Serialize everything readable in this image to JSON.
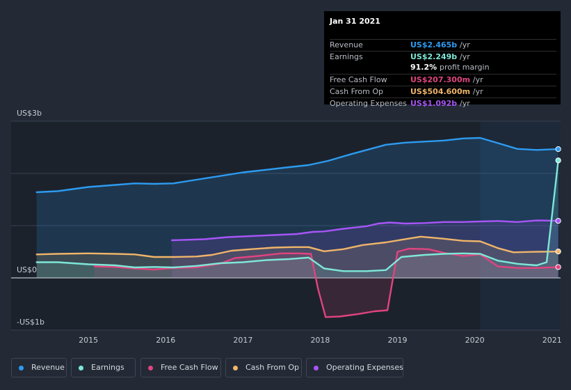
{
  "tooltip": {
    "date": "Jan 31 2021",
    "rows": [
      {
        "label": "Revenue",
        "value": "US$2.465b",
        "unit": "/yr",
        "color": "#2d9bf0"
      },
      {
        "label": "Earnings",
        "value": "US$2.249b",
        "unit": "/yr",
        "color": "#7ee8d8"
      },
      {
        "label": "",
        "value": "91.2%",
        "unit": "profit margin",
        "color": "#ffffff"
      },
      {
        "label": "Free Cash Flow",
        "value": "US$207.300m",
        "unit": "/yr",
        "color": "#e0447f"
      },
      {
        "label": "Cash From Op",
        "value": "US$504.600m",
        "unit": "/yr",
        "color": "#f0b56a"
      },
      {
        "label": "Operating Expenses",
        "value": "US$1.092b",
        "unit": "/yr",
        "color": "#a855f7"
      }
    ]
  },
  "legend": [
    {
      "label": "Revenue",
      "color": "#2d9bf0"
    },
    {
      "label": "Earnings",
      "color": "#7ee8d8"
    },
    {
      "label": "Free Cash Flow",
      "color": "#e0447f"
    },
    {
      "label": "Cash From Op",
      "color": "#f0b56a"
    },
    {
      "label": "Operating Expenses",
      "color": "#a855f7"
    }
  ],
  "chart_data": {
    "type": "area",
    "title": "",
    "xlabel": "",
    "ylabel": "",
    "ylim": [
      -1.0,
      3.0
    ],
    "y_tick_labels": [
      {
        "value": 3,
        "label": "US$3b"
      },
      {
        "value": 0,
        "label": "US$0"
      },
      {
        "value": -1,
        "label": "-US$1b"
      }
    ],
    "x_tick_labels": [
      "2015",
      "2016",
      "2017",
      "2018",
      "2019",
      "2020",
      "2021"
    ],
    "x_range": [
      2014.33,
      2021.08
    ],
    "forecast_start": 2020.07,
    "units": "US$ billions",
    "series": [
      {
        "name": "Revenue",
        "color": "#2d9bf0",
        "x": [
          2014.33,
          2014.6,
          2015.0,
          2015.35,
          2015.6,
          2015.85,
          2016.1,
          2016.4,
          2016.7,
          2017.0,
          2017.3,
          2017.6,
          2017.85,
          2018.1,
          2018.4,
          2018.65,
          2018.85,
          2019.1,
          2019.35,
          2019.6,
          2019.85,
          2020.07,
          2020.3,
          2020.55,
          2020.8,
          2021.08
        ],
        "values": [
          1.64,
          1.66,
          1.74,
          1.78,
          1.81,
          1.8,
          1.81,
          1.88,
          1.95,
          2.02,
          2.07,
          2.12,
          2.16,
          2.24,
          2.37,
          2.47,
          2.55,
          2.59,
          2.61,
          2.63,
          2.67,
          2.68,
          2.58,
          2.47,
          2.45,
          2.465
        ]
      },
      {
        "name": "Earnings",
        "color": "#7ee8d8",
        "x": [
          2014.33,
          2014.6,
          2015.0,
          2015.35,
          2015.6,
          2015.85,
          2016.1,
          2016.4,
          2016.7,
          2017.0,
          2017.3,
          2017.6,
          2017.85,
          2018.05,
          2018.3,
          2018.6,
          2018.85,
          2019.05,
          2019.35,
          2019.6,
          2019.85,
          2020.07,
          2020.3,
          2020.55,
          2020.8,
          2020.93,
          2021.08
        ],
        "values": [
          0.3,
          0.3,
          0.26,
          0.24,
          0.2,
          0.21,
          0.2,
          0.23,
          0.28,
          0.3,
          0.34,
          0.36,
          0.39,
          0.18,
          0.13,
          0.13,
          0.15,
          0.4,
          0.44,
          0.46,
          0.47,
          0.46,
          0.33,
          0.27,
          0.24,
          0.3,
          2.249
        ]
      },
      {
        "name": "Free Cash Flow",
        "color": "#e0447f",
        "x": [
          2015.08,
          2015.35,
          2015.6,
          2015.85,
          2016.1,
          2016.4,
          2016.7,
          2016.9,
          2017.2,
          2017.5,
          2017.7,
          2017.88,
          2017.97,
          2018.07,
          2018.25,
          2018.5,
          2018.7,
          2018.87,
          2019.0,
          2019.15,
          2019.4,
          2019.6,
          2019.85,
          2020.07,
          2020.3,
          2020.55,
          2020.8,
          2021.08
        ],
        "values": [
          0.22,
          0.21,
          0.18,
          0.16,
          0.19,
          0.2,
          0.27,
          0.38,
          0.42,
          0.47,
          0.47,
          0.46,
          -0.2,
          -0.75,
          -0.74,
          -0.69,
          -0.64,
          -0.62,
          0.5,
          0.56,
          0.55,
          0.48,
          0.42,
          0.45,
          0.22,
          0.19,
          0.19,
          0.207
        ]
      },
      {
        "name": "Cash From Op",
        "color": "#f0b56a",
        "x": [
          2014.33,
          2014.6,
          2015.0,
          2015.35,
          2015.6,
          2015.85,
          2016.1,
          2016.4,
          2016.6,
          2016.85,
          2017.1,
          2017.4,
          2017.65,
          2017.85,
          2018.05,
          2018.3,
          2018.55,
          2018.85,
          2019.05,
          2019.3,
          2019.6,
          2019.85,
          2020.07,
          2020.3,
          2020.5,
          2020.8,
          2021.08
        ],
        "values": [
          0.45,
          0.46,
          0.47,
          0.46,
          0.45,
          0.4,
          0.4,
          0.41,
          0.44,
          0.52,
          0.55,
          0.58,
          0.59,
          0.59,
          0.51,
          0.55,
          0.63,
          0.68,
          0.73,
          0.79,
          0.75,
          0.71,
          0.7,
          0.57,
          0.49,
          0.5,
          0.5046
        ]
      },
      {
        "name": "Operating Expenses",
        "color": "#a855f7",
        "x": [
          2016.08,
          2016.5,
          2016.8,
          2017.1,
          2017.4,
          2017.7,
          2017.9,
          2018.05,
          2018.3,
          2018.6,
          2018.75,
          2018.9,
          2019.1,
          2019.35,
          2019.6,
          2019.85,
          2020.07,
          2020.3,
          2020.55,
          2020.8,
          2021.08
        ],
        "values": [
          0.72,
          0.74,
          0.78,
          0.8,
          0.82,
          0.84,
          0.88,
          0.89,
          0.94,
          0.99,
          1.04,
          1.06,
          1.04,
          1.05,
          1.07,
          1.07,
          1.08,
          1.09,
          1.07,
          1.1,
          1.092
        ]
      }
    ]
  }
}
